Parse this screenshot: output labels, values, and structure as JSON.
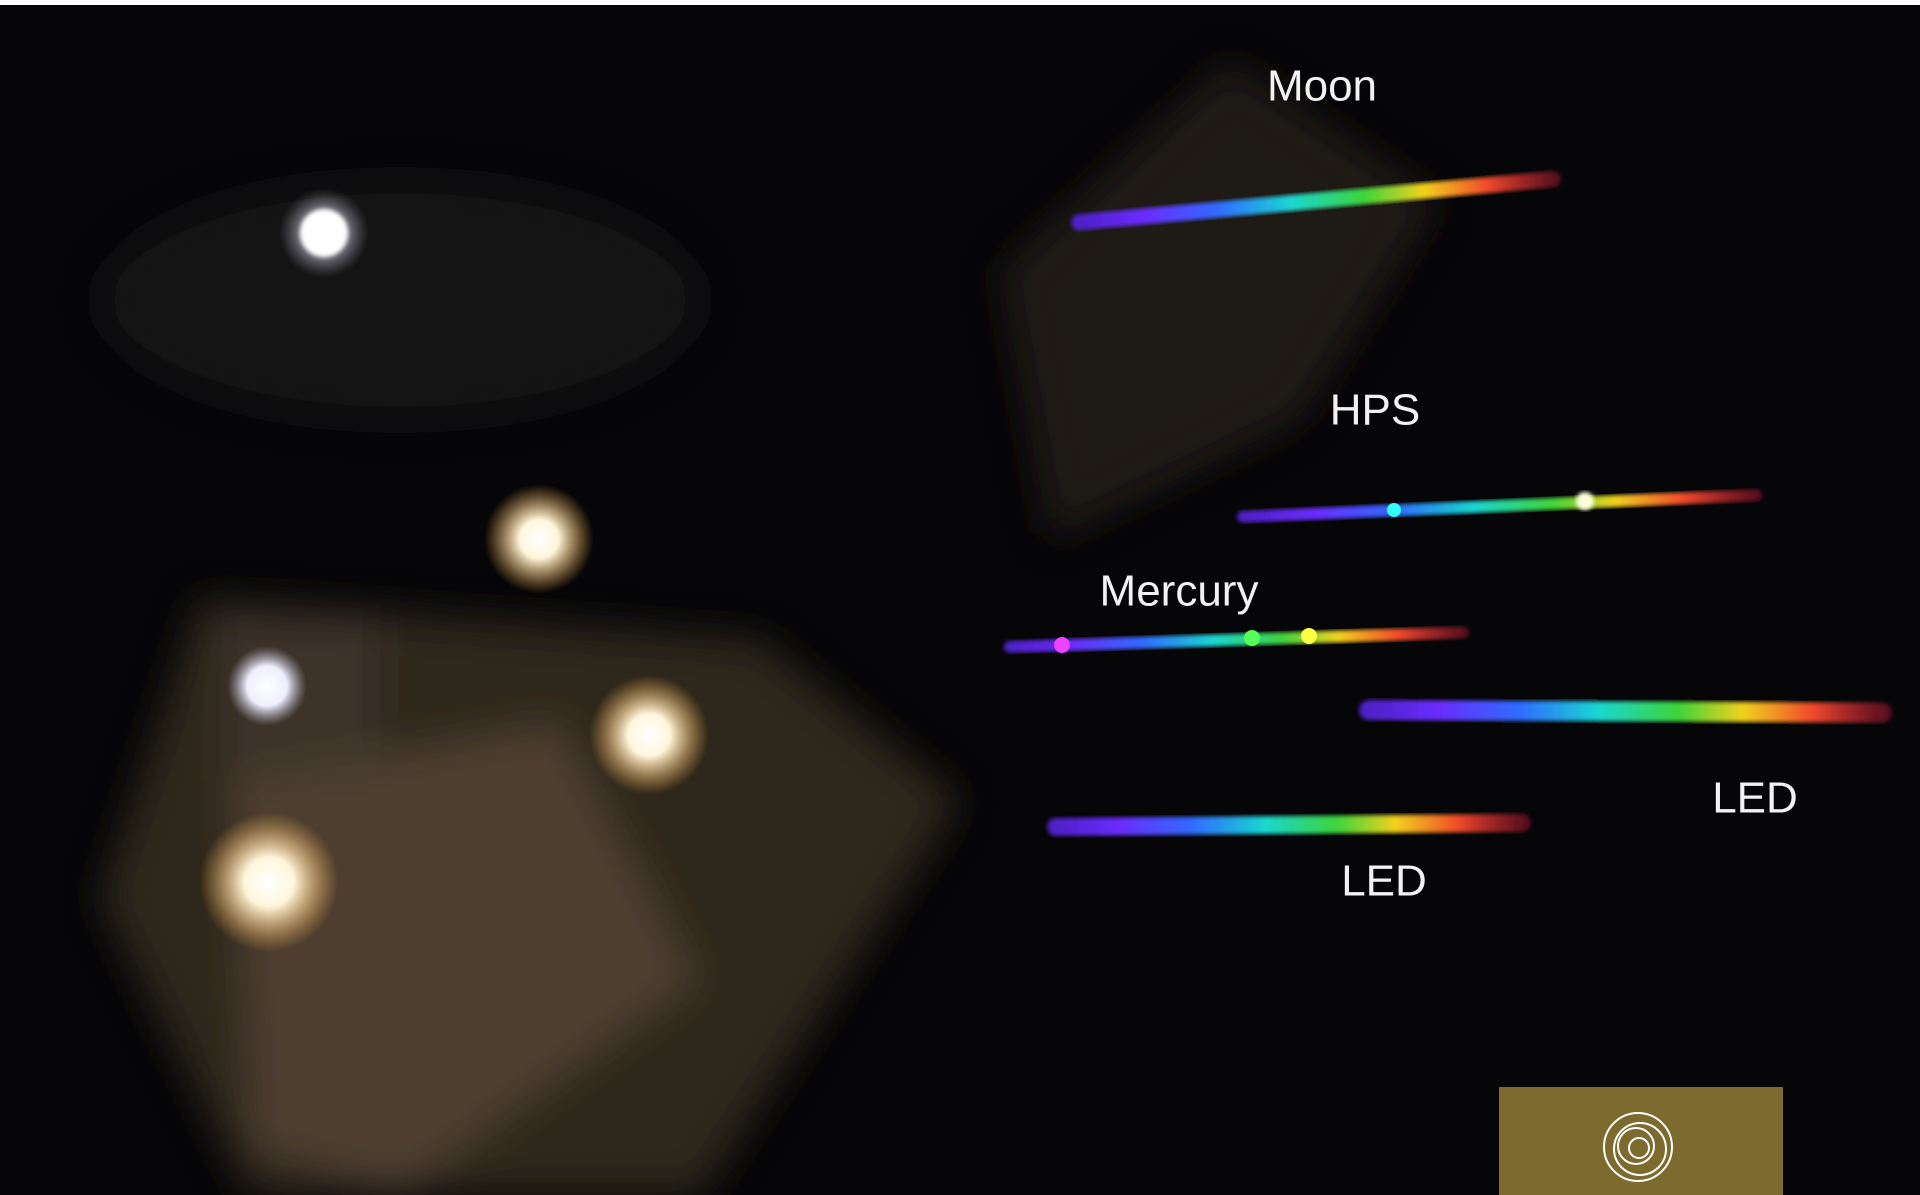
{
  "labels": [
    "Moon",
    "HPS",
    "Mercury",
    "LED",
    "LED"
  ]
}
